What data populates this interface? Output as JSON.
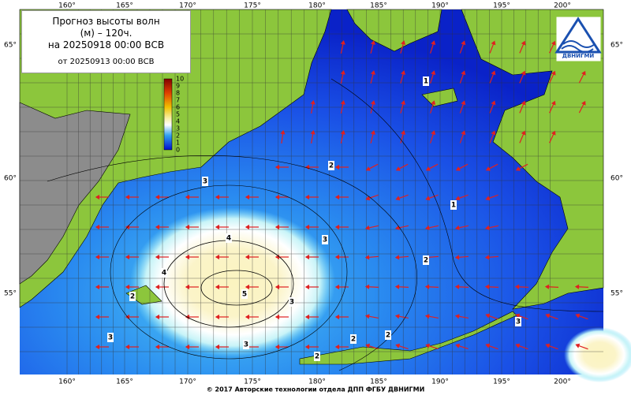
{
  "header": {
    "title": "Прогноз высоты волн (м) – 120ч.",
    "valid": "на 20250918 00:00 ВСВ",
    "issued": "от 20250913 00:00 ВСВ"
  },
  "logo": "ДВНИГМИ",
  "map": {
    "lon_labels": [
      "160°",
      "165°",
      "170°",
      "175°",
      "180°",
      "185°",
      "190°",
      "195°",
      "200°"
    ],
    "lat_labels": [
      "65°",
      "60°",
      "55°"
    ],
    "contour_labels": [
      "4",
      "5",
      "4",
      "3",
      "3",
      "2",
      "2",
      "1",
      "1",
      "2",
      "3",
      "3",
      "2",
      "2",
      "2",
      "3",
      "3"
    ]
  },
  "colorbar": {
    "ticks": [
      10,
      9,
      8,
      7,
      6,
      5,
      4,
      3,
      2,
      1,
      0
    ]
  },
  "footer": "© 2017 Авторские технологии отдела ДПП ФГБУ ДВНИГМИ"
}
